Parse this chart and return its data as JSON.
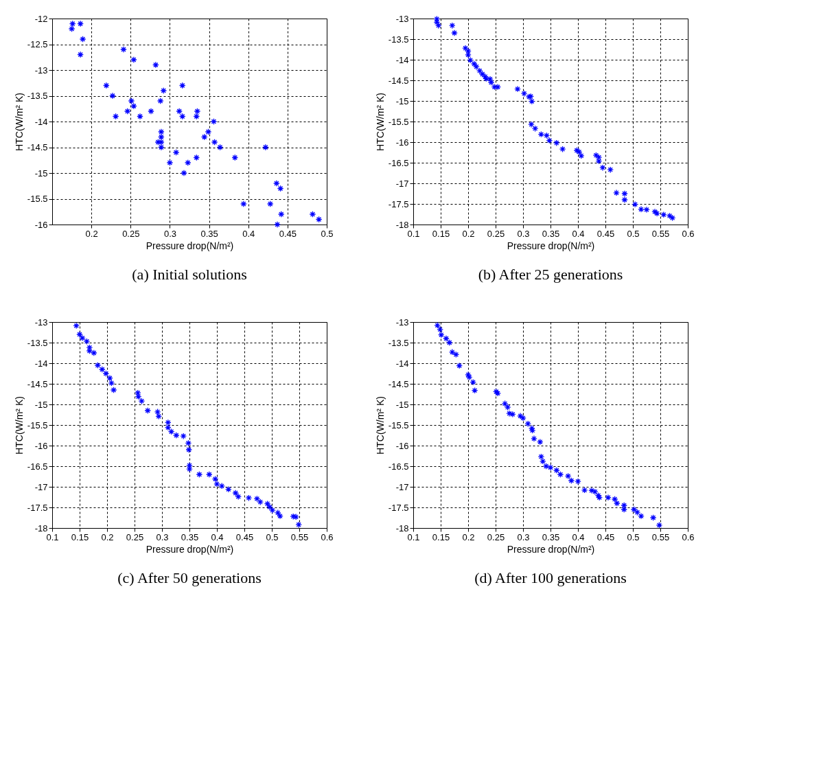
{
  "chart_data": [
    {
      "type": "scatter",
      "title": "(a) Initial solutions",
      "xlabel": "Pressure drop(N/m²)",
      "ylabel": "HTC(W/m² K)",
      "xlim": [
        0.15,
        0.5
      ],
      "xticks": [
        0.2,
        0.25,
        0.3,
        0.35,
        0.4,
        0.45,
        0.5
      ],
      "ylim": [
        -16,
        -12
      ],
      "yticks": [
        -16,
        -15.5,
        -15,
        -14.5,
        -14,
        -13.5,
        -13,
        -12.5,
        -12
      ],
      "grid": true,
      "marker": "cross",
      "series": [
        {
          "color": "#0000ff",
          "x": [
            0.176,
            0.186,
            0.175,
            0.189,
            0.186,
            0.241,
            0.254,
            0.282,
            0.219,
            0.316,
            0.292,
            0.227,
            0.251,
            0.288,
            0.254,
            0.246,
            0.276,
            0.312,
            0.335,
            0.231,
            0.262,
            0.316,
            0.334,
            0.356,
            0.289,
            0.349,
            0.289,
            0.344,
            0.285,
            0.289,
            0.357,
            0.289,
            0.364,
            0.422,
            0.308,
            0.334,
            0.383,
            0.3,
            0.323,
            0.318,
            0.436,
            0.441,
            0.394,
            0.428,
            0.442,
            0.482,
            0.49,
            0.437
          ],
          "values": [
            -12.1,
            -12.1,
            -12.2,
            -12.4,
            -12.7,
            -12.6,
            -12.8,
            -12.9,
            -13.3,
            -13.3,
            -13.4,
            -13.5,
            -13.6,
            -13.6,
            -13.7,
            -13.8,
            -13.8,
            -13.8,
            -13.8,
            -13.9,
            -13.9,
            -13.9,
            -13.9,
            -14.0,
            -14.2,
            -14.2,
            -14.3,
            -14.3,
            -14.4,
            -14.4,
            -14.4,
            -14.5,
            -14.5,
            -14.5,
            -14.6,
            -14.7,
            -14.7,
            -14.8,
            -14.8,
            -15.0,
            -15.2,
            -15.3,
            -15.6,
            -15.6,
            -15.8,
            -15.8,
            -15.9,
            -16.0
          ]
        }
      ]
    },
    {
      "type": "scatter",
      "title": "(b) After 25 generations",
      "xlabel": "Pressure drop(N/m²)",
      "ylabel": "HTC(W/m² K)",
      "xlim": [
        0.1,
        0.6
      ],
      "xticks": [
        0.1,
        0.15,
        0.2,
        0.25,
        0.3,
        0.35,
        0.4,
        0.45,
        0.5,
        0.55,
        0.6
      ],
      "ylim": [
        -18,
        -13
      ],
      "yticks": [
        -18,
        -17.5,
        -17,
        -16.5,
        -16,
        -15.5,
        -15,
        -14.5,
        -14,
        -13.5,
        -13
      ],
      "grid": true,
      "marker": "cross",
      "series": [
        {
          "color": "#0000ff",
          "x": [
            0.143,
            0.143,
            0.146,
            0.171,
            0.175,
            0.195,
            0.2,
            0.2,
            0.204,
            0.211,
            0.215,
            0.221,
            0.226,
            0.231,
            0.233,
            0.24,
            0.242,
            0.248,
            0.254,
            0.29,
            0.302,
            0.311,
            0.314,
            0.316,
            0.315,
            0.322,
            0.333,
            0.343,
            0.348,
            0.361,
            0.372,
            0.398,
            0.402,
            0.406,
            0.433,
            0.438,
            0.438,
            0.445,
            0.459,
            0.47,
            0.485,
            0.485,
            0.504,
            0.515,
            0.525,
            0.54,
            0.544,
            0.556,
            0.567,
            0.572
          ],
          "values": [
            -13.01,
            -13.09,
            -13.17,
            -13.17,
            -13.35,
            -13.72,
            -13.79,
            -13.88,
            -14.01,
            -14.1,
            -14.17,
            -14.27,
            -14.35,
            -14.41,
            -14.46,
            -14.47,
            -14.55,
            -14.66,
            -14.66,
            -14.71,
            -14.82,
            -14.9,
            -14.89,
            -15.01,
            -15.57,
            -15.67,
            -15.81,
            -15.84,
            -15.96,
            -16.02,
            -16.17,
            -16.2,
            -16.24,
            -16.33,
            -16.32,
            -16.37,
            -16.46,
            -16.62,
            -16.67,
            -17.23,
            -17.25,
            -17.4,
            -17.51,
            -17.63,
            -17.64,
            -17.69,
            -17.73,
            -17.76,
            -17.79,
            -17.84
          ]
        }
      ]
    },
    {
      "type": "scatter",
      "title": "(c) After 50 generations",
      "xlabel": "Pressure drop(N/m²)",
      "ylabel": "HTC(W/m² K)",
      "xlim": [
        0.1,
        0.6
      ],
      "xticks": [
        0.1,
        0.15,
        0.2,
        0.25,
        0.3,
        0.35,
        0.4,
        0.45,
        0.5,
        0.55,
        0.6
      ],
      "ylim": [
        -18,
        -13
      ],
      "yticks": [
        -18,
        -17.5,
        -17,
        -16.5,
        -16,
        -15.5,
        -15,
        -14.5,
        -14,
        -13.5,
        -13
      ],
      "grid": true,
      "marker": "cross",
      "series": [
        {
          "color": "#0000ff",
          "x": [
            0.144,
            0.15,
            0.155,
            0.163,
            0.168,
            0.168,
            0.176,
            0.183,
            0.191,
            0.198,
            0.205,
            0.208,
            0.212,
            0.256,
            0.257,
            0.263,
            0.274,
            0.292,
            0.294,
            0.311,
            0.311,
            0.317,
            0.326,
            0.339,
            0.348,
            0.349,
            0.35,
            0.35,
            0.368,
            0.386,
            0.397,
            0.4,
            0.409,
            0.421,
            0.434,
            0.439,
            0.458,
            0.473,
            0.479,
            0.492,
            0.496,
            0.501,
            0.511,
            0.515,
            0.539,
            0.544,
            0.549
          ],
          "values": [
            -13.09,
            -13.3,
            -13.39,
            -13.47,
            -13.62,
            -13.7,
            -13.75,
            -14.05,
            -14.15,
            -14.25,
            -14.36,
            -14.48,
            -14.65,
            -14.72,
            -14.81,
            -14.92,
            -15.15,
            -15.18,
            -15.29,
            -15.44,
            -15.56,
            -15.66,
            -15.75,
            -15.77,
            -15.94,
            -16.1,
            -16.48,
            -16.57,
            -16.7,
            -16.7,
            -16.81,
            -16.93,
            -16.98,
            -17.06,
            -17.15,
            -17.24,
            -17.27,
            -17.29,
            -17.37,
            -17.41,
            -17.49,
            -17.57,
            -17.63,
            -17.71,
            -17.72,
            -17.73,
            -17.92
          ]
        }
      ]
    },
    {
      "type": "scatter",
      "title": "(d) After 100 generations",
      "xlabel": "Pressure drop(N/m²)",
      "ylabel": "HTC(W/m² K)",
      "xlim": [
        0.1,
        0.6
      ],
      "xticks": [
        0.1,
        0.15,
        0.2,
        0.25,
        0.3,
        0.35,
        0.4,
        0.45,
        0.5,
        0.55,
        0.6
      ],
      "ylim": [
        -18,
        -13
      ],
      "yticks": [
        -18,
        -17.5,
        -17,
        -16.5,
        -16,
        -15.5,
        -15,
        -14.5,
        -14,
        -13.5,
        -13
      ],
      "grid": true,
      "marker": "cross",
      "series": [
        {
          "color": "#0000ff",
          "x": [
            0.144,
            0.149,
            0.151,
            0.16,
            0.166,
            0.171,
            0.178,
            0.184,
            0.2,
            0.202,
            0.209,
            0.212,
            0.251,
            0.254,
            0.267,
            0.272,
            0.275,
            0.281,
            0.295,
            0.3,
            0.309,
            0.316,
            0.317,
            0.32,
            0.331,
            0.333,
            0.336,
            0.342,
            0.35,
            0.361,
            0.368,
            0.382,
            0.388,
            0.4,
            0.412,
            0.425,
            0.431,
            0.437,
            0.439,
            0.455,
            0.467,
            0.471,
            0.484,
            0.484,
            0.502,
            0.508,
            0.515,
            0.537,
            0.548
          ],
          "values": [
            -13.08,
            -13.18,
            -13.31,
            -13.4,
            -13.5,
            -13.73,
            -13.79,
            -14.06,
            -14.28,
            -14.34,
            -14.46,
            -14.66,
            -14.69,
            -14.73,
            -14.98,
            -15.07,
            -15.22,
            -15.24,
            -15.28,
            -15.33,
            -15.47,
            -15.58,
            -15.63,
            -15.83,
            -15.91,
            -16.27,
            -16.38,
            -16.5,
            -16.53,
            -16.6,
            -16.7,
            -16.74,
            -16.85,
            -16.87,
            -17.08,
            -17.09,
            -17.12,
            -17.21,
            -17.26,
            -17.26,
            -17.3,
            -17.4,
            -17.45,
            -17.55,
            -17.55,
            -17.62,
            -17.71,
            -17.75,
            -17.93
          ]
        }
      ]
    }
  ]
}
